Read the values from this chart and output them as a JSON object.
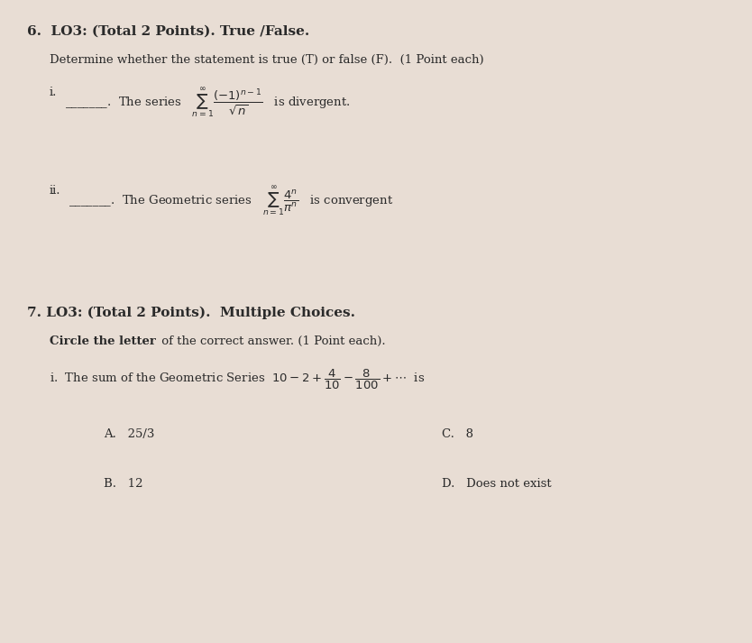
{
  "bg_color": "#e8ddd4",
  "text_color": "#2a2a2a",
  "title_q6": "6.  LO3: (Total 2 Points). True /False.",
  "subtitle_q6": "Determine whether the statement is true (T) or false (F).  (1 Point each)",
  "title_q7": "7. LO3: (Total 2 Points).  Multiple Choices.",
  "subtitle_q7_bold": "Circle the letter",
  "subtitle_q7_rest": " of the correct answer. (1 Point each).",
  "answer_A": "A.   25/3",
  "answer_B": "B.   12",
  "answer_C": "C.   8",
  "answer_D": "D.   Does not exist",
  "fontsize_title": 11,
  "fontsize_body": 9.5,
  "figsize": [
    8.34,
    7.13
  ],
  "dpi": 100
}
